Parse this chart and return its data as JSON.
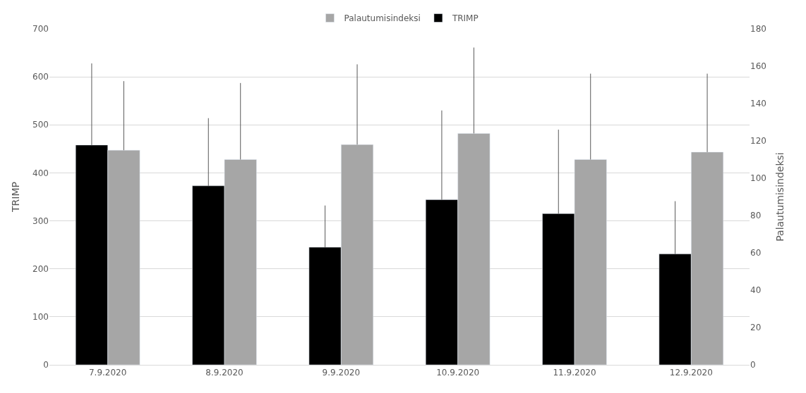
{
  "chart_data": {
    "type": "bar",
    "categories": [
      "7.9.2020",
      "8.9.2020",
      "9.9.2020",
      "10.9.2020",
      "11.9.2020",
      "12.9.2020"
    ],
    "series": [
      {
        "name": "TRIMP",
        "color": "#000000",
        "values": [
          458,
          373,
          245,
          344,
          315,
          231
        ],
        "errors": [
          [
            458,
            628
          ],
          [
            373,
            514
          ],
          [
            245,
            332
          ],
          [
            344,
            530
          ],
          [
            315,
            490
          ],
          [
            231,
            341
          ]
        ]
      },
      {
        "name": "Palautumisindeksi",
        "color": "#a6a6a6",
        "axis": "y2",
        "values": [
          115,
          110,
          118,
          124,
          110,
          114
        ],
        "errors": [
          [
            115,
            152
          ],
          [
            110,
            151
          ],
          [
            118,
            161
          ],
          [
            124,
            170
          ],
          [
            110,
            156
          ],
          [
            114,
            156
          ]
        ]
      }
    ],
    "ylabel": "TRIMP",
    "y2label": "Palautumisindeksi",
    "ylim": [
      0,
      700
    ],
    "yticks": [
      0,
      100,
      200,
      300,
      400,
      500,
      600,
      700
    ],
    "y2lim": [
      0,
      180
    ],
    "y2ticks": [
      0,
      20,
      40,
      60,
      80,
      100,
      120,
      140,
      160,
      180
    ],
    "grid": "y",
    "legend": "top"
  }
}
